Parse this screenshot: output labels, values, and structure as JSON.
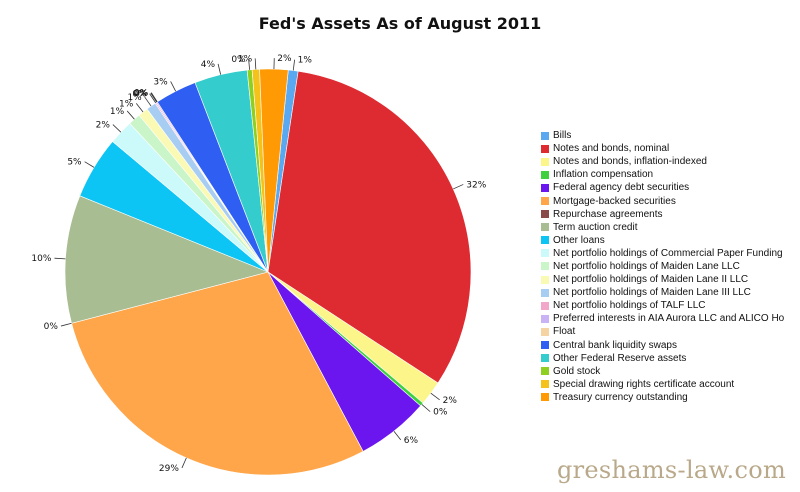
{
  "chart_data": {
    "type": "pie",
    "title": "Fed's Assets As of August 2011",
    "legend_position": "right",
    "slices": [
      {
        "name": "Bills",
        "value": 0.8,
        "label": "1%",
        "color": "#5aa9f0"
      },
      {
        "name": "Notes and bonds, nominal",
        "value": 32.5,
        "label": "32%",
        "color": "#dd2b31"
      },
      {
        "name": "Notes and bonds, inflation-indexed",
        "value": 2.0,
        "label": "2%",
        "color": "#fbf58a"
      },
      {
        "name": "Inflation compensation",
        "value": 0.3,
        "label": "0%",
        "color": "#3fcf3f"
      },
      {
        "name": "Federal agency debt securities",
        "value": 5.9,
        "label": "6%",
        "color": "#6b16ee"
      },
      {
        "name": "Mortgage-backed securities",
        "value": 29.3,
        "label": "29%",
        "color": "#ffa64a"
      },
      {
        "name": "Repurchase agreements",
        "value": 0.0,
        "label": "0%",
        "color": "#8b4a4a"
      },
      {
        "name": "Term auction credit",
        "value": 10.4,
        "label": "10%",
        "color": "#a8bd91"
      },
      {
        "name": "Other loans",
        "value": 5.1,
        "label": "5%",
        "color": "#0cc5f5"
      },
      {
        "name": "Net portfolio holdings of Commercial Paper Funding",
        "value": 2.0,
        "label": "2%",
        "color": "#ccfafa"
      },
      {
        "name": "Net portfolio holdings of Maiden Lane LLC",
        "value": 1.0,
        "label": "1%",
        "color": "#c9f5c8"
      },
      {
        "name": "Net portfolio holdings of Maiden Lane II LLC",
        "value": 0.8,
        "label": "1%",
        "color": "#fafab4"
      },
      {
        "name": "Net portfolio holdings of Maiden Lane III LLC",
        "value": 0.8,
        "label": "1%",
        "color": "#a8cdf2"
      },
      {
        "name": "Net portfolio holdings of TALF LLC",
        "value": 0.1,
        "label": "0%",
        "color": "#f2a6c9"
      },
      {
        "name": "Preferred interests in AIA Aurora LLC and ALICO Ho",
        "value": 0.1,
        "label": "0%",
        "color": "#c9b3f5"
      },
      {
        "name": "Float",
        "value": 0.0,
        "label": "0%",
        "color": "#f5d3a2"
      },
      {
        "name": "Central bank liquidity swaps",
        "value": 3.4,
        "label": "3%",
        "color": "#2f5ff2"
      },
      {
        "name": "Other Federal Reserve assets",
        "value": 4.3,
        "label": "4%",
        "color": "#34cccc"
      },
      {
        "name": "Gold stock",
        "value": 0.4,
        "label": "0%",
        "color": "#8fcf1f"
      },
      {
        "name": "Special drawing rights certificate account",
        "value": 0.6,
        "label": "1%",
        "color": "#f5c21a"
      },
      {
        "name": "Treasury currency outstanding",
        "value": 2.3,
        "label": "2%",
        "color": "#ff9a05"
      }
    ]
  },
  "watermark": "greshams-law.com"
}
